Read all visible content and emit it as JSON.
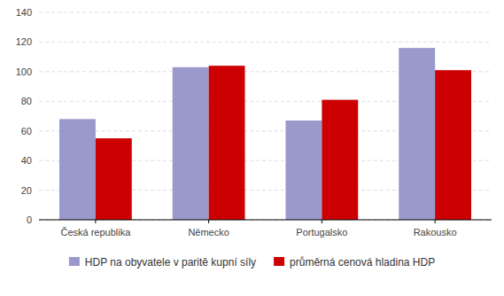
{
  "chart_data": {
    "type": "bar",
    "categories": [
      "Česká republika",
      "Německo",
      "Portugalsko",
      "Rakousko"
    ],
    "series": [
      {
        "name": "HDP na obyvatele v paritě kupní síly",
        "values": [
          68,
          103,
          67,
          116
        ],
        "color": "#9999cc"
      },
      {
        "name": "průměrná cenová hladina HDP",
        "values": [
          55,
          104,
          81,
          101
        ],
        "color": "#cc0000"
      }
    ],
    "ylim": [
      0,
      140
    ],
    "yticks": [
      0,
      20,
      40,
      60,
      80,
      100,
      120,
      140
    ],
    "grid": true,
    "legend": "bottom"
  }
}
